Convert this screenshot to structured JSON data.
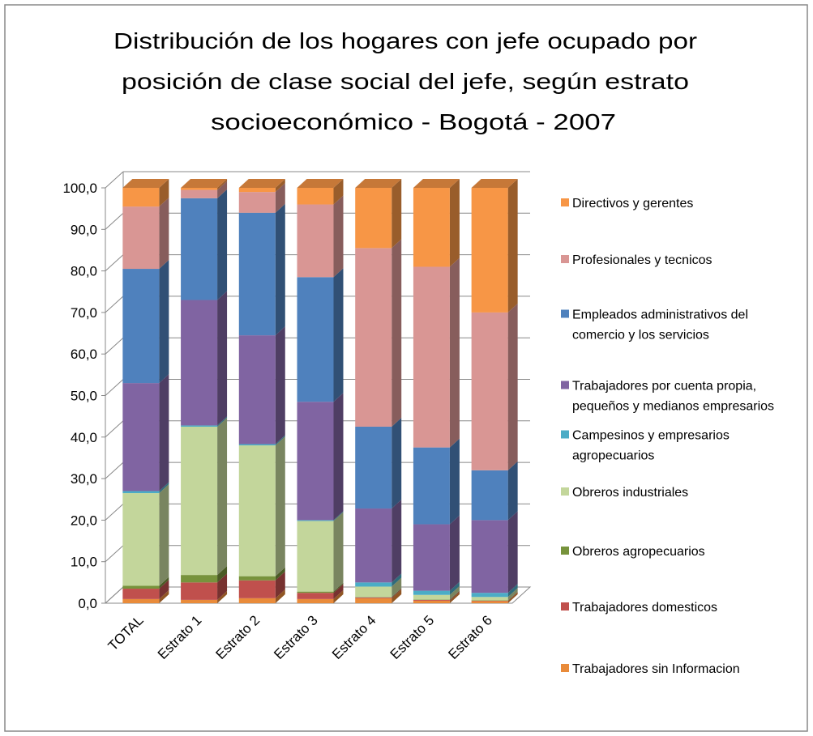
{
  "chart_data": {
    "type": "stacked_bar_3d",
    "title": [
      "Distribución de los hogares con jefe ocupado por",
      "posición de clase social del jefe, según estrato",
      "socioeconómico -  Bogotá - 2007"
    ],
    "categories": [
      "TOTAL",
      "Estrato 1",
      "Estrato 2",
      "Estrato 3",
      "Estrato 4",
      "Estrato 5",
      "Estrato 6"
    ],
    "series": [
      {
        "name": "Trabajadores sin Informacion",
        "color": "#e98b3a",
        "values": [
          1.0,
          0.8,
          1.2,
          1.0,
          1.2,
          0.6,
          0.5
        ]
      },
      {
        "name": "Trabajadores domesticos",
        "color": "#c0504d",
        "values": [
          2.5,
          4.2,
          4.3,
          1.5,
          0.2,
          0.2,
          0.1
        ]
      },
      {
        "name": "Obreros agropecuarios",
        "color": "#77933c",
        "values": [
          0.7,
          1.8,
          1.0,
          0.3,
          0.1,
          0.1,
          0.1
        ]
      },
      {
        "name": "Obreros industriales",
        "color": "#c3d69b",
        "values": [
          22.3,
          35.7,
          31.5,
          17.0,
          2.5,
          1.1,
          0.8
        ]
      },
      {
        "name": "Campesinos y empresarios agropecuarios",
        "color": "#4bacc6",
        "values": [
          0.5,
          0.3,
          0.3,
          0.2,
          1.0,
          1.0,
          1.0
        ]
      },
      {
        "name": "Trabajadores por cuenta propia, pequeños y medianos empresarios",
        "color": "#8064a2",
        "values": [
          26.0,
          30.2,
          26.2,
          28.5,
          17.8,
          16.0,
          17.5
        ]
      },
      {
        "name": "Empleados administrativos del comercio y los servicios",
        "color": "#4f81bd",
        "values": [
          27.5,
          24.5,
          29.5,
          30.0,
          19.7,
          18.5,
          12.0
        ]
      },
      {
        "name": "Profesionales y tecnicos",
        "color": "#d99694",
        "values": [
          15.0,
          2.0,
          5.0,
          17.5,
          43.0,
          43.5,
          38.0
        ]
      },
      {
        "name": "Directivos y gerentes",
        "color": "#f79646",
        "values": [
          4.5,
          0.5,
          1.0,
          4.0,
          14.5,
          19.0,
          30.0
        ]
      }
    ],
    "ylim": [
      0,
      100
    ],
    "yticks": [
      {
        "value": 0,
        "label": "0,0"
      },
      {
        "value": 10,
        "label": "10,0"
      },
      {
        "value": 20,
        "label": "20,0"
      },
      {
        "value": 30,
        "label": "30,0"
      },
      {
        "value": 40,
        "label": "40,0"
      },
      {
        "value": 50,
        "label": "50,0"
      },
      {
        "value": 60,
        "label": "60,0"
      },
      {
        "value": 70,
        "label": "70,0"
      },
      {
        "value": 80,
        "label": "80,0"
      },
      {
        "value": 90,
        "label": "90,0"
      },
      {
        "value": 100,
        "label": "100,0"
      }
    ],
    "grid": true,
    "legend": "right"
  }
}
